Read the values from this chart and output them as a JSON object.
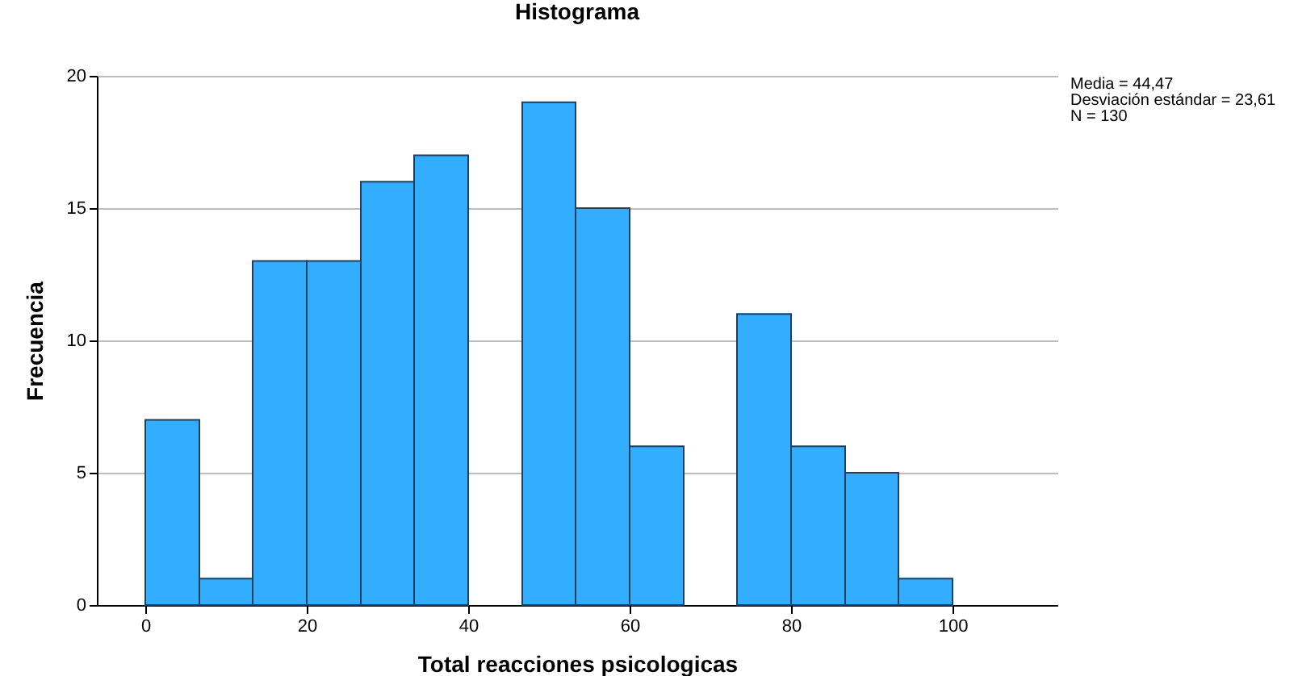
{
  "chart_data": {
    "type": "histogram",
    "title": "Histograma",
    "xlabel": "Total reacciones psicologicas",
    "ylabel": "Frecuencia",
    "bins": [
      0,
      6.7,
      13.3,
      20,
      26.7,
      33.3,
      40,
      46.7,
      53.3,
      60,
      66.7,
      73.3,
      80,
      86.7,
      93.3,
      100
    ],
    "values": [
      7,
      1,
      13,
      13,
      16,
      17,
      0,
      19,
      15,
      6,
      0,
      11,
      6,
      5,
      1
    ],
    "color": "#33adff",
    "xlim": [
      -6,
      113
    ],
    "xticks": [
      0,
      20,
      40,
      60,
      80,
      100
    ],
    "ylim": [
      0,
      20
    ],
    "yticks": [
      0,
      5,
      10,
      15,
      20
    ],
    "grid": "y",
    "annotations": [
      "Media = 44,47",
      "Desviación estándar = 23,61",
      "N = 130"
    ]
  }
}
